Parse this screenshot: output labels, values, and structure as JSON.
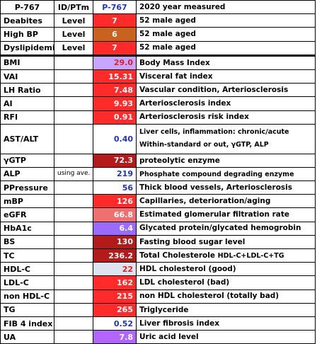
{
  "header": {
    "name": "P-767",
    "id": "ID/PTm",
    "value": "P-767",
    "desc": "2020 year measured"
  },
  "risk_rows": [
    {
      "name": "Deabites",
      "id": "Level",
      "value": "7",
      "desc": "52 male aged",
      "color": "#ff2b2b",
      "text_color": "#ffffff"
    },
    {
      "name": "High BP",
      "id": "Level",
      "value": "6",
      "desc": "52 male aged",
      "color": "#c8621e",
      "text_color": "#ffffff"
    },
    {
      "name": "Dyslipidemia",
      "id": "Level",
      "value": "7",
      "desc": "52 male aged",
      "color": "#ff2b2b",
      "text_color": "#ffffff"
    }
  ],
  "rows": [
    {
      "name": "BMI",
      "id": "",
      "value": "29.0",
      "desc": "Body Mass Index",
      "color": "#c8a6ff",
      "text_color": "#e02020",
      "sep": true
    },
    {
      "name": "VAI",
      "id": "",
      "value": "15.31",
      "desc": "Visceral fat index",
      "color": "#ff2b2b",
      "text_color": "#ffffff"
    },
    {
      "name": "LH Ratio",
      "id": "",
      "value": "7.48",
      "desc": "Vascular condition, Arteriosclerosis",
      "color": "#ff2b2b",
      "text_color": "#ffffff"
    },
    {
      "name": "AI",
      "id": "",
      "value": "9.93",
      "desc": "Arteriosclerosis index",
      "color": "#ff2b2b",
      "text_color": "#ffffff"
    },
    {
      "name": "RFI",
      "id": "",
      "value": "0.91",
      "desc": "Arteriosclerosis risk index",
      "color": "#ff2b2b",
      "text_color": "#ffffff"
    },
    {
      "name": "AST/ALT",
      "id": "",
      "value": "0.40",
      "desc": "Liver cells, inflammation: chronic/acute",
      "desc2": "Within-standard or out, γGTP, ALP",
      "color": "#ffffff",
      "text_color": "#1f2fd0",
      "tall": true
    },
    {
      "name": "γGTP",
      "id": "",
      "value": "72.3",
      "desc": "proteolytic enzyme",
      "color": "#b31b1b",
      "text_color": "#ffffff"
    },
    {
      "name": "ALP",
      "id": "using ave.",
      "value": "219",
      "desc": "Phosphate compound degrading enzyme",
      "color": "#ffffff",
      "text_color": "#1f2fd0",
      "small": true
    },
    {
      "name": "PPressure",
      "id": "",
      "value": "56",
      "desc": "Thick blood vessels, Arteriosclerosis",
      "color": "#ffffff",
      "text_color": "#1f2fd0"
    },
    {
      "name": "mBP",
      "id": "",
      "value": "126",
      "desc": "Capillaries, deterioration/aging",
      "color": "#ff2b2b",
      "text_color": "#ffffff"
    },
    {
      "name": "eGFR",
      "id": "",
      "value": "66.8",
      "desc": "Estimated glomerular filtration rate",
      "color": "#f07070",
      "text_color": "#ffffff"
    },
    {
      "name": "HbA1c",
      "id": "",
      "value": "6.4",
      "desc": "Glycated protein/glycated hemogrobin",
      "color": "#9a6bff",
      "text_color": "#ffffff"
    },
    {
      "name": "BS",
      "id": "",
      "value": "130",
      "desc": "Fasting blood sugar level",
      "color": "#b31b1b",
      "text_color": "#ffffff"
    },
    {
      "name": "TC",
      "id": "",
      "value": "236.2",
      "desc": "Total Cholesterole",
      "desc_suffix": "HDL-C+LDL-C+TG",
      "color": "#b31b1b",
      "text_color": "#ffffff"
    },
    {
      "name": "HDL-C",
      "id": "",
      "value": "22",
      "desc": "HDL cholesterol (good)",
      "color": "#dfe3f0",
      "text_color": "#e02020"
    },
    {
      "name": "LDL-C",
      "id": "",
      "value": "162",
      "desc": "LDL cholesterol (bad)",
      "color": "#ff2b2b",
      "text_color": "#ffffff"
    },
    {
      "name": "non HDL-C",
      "id": "",
      "value": "215",
      "desc": "non HDL cholesterol (totally bad)",
      "color": "#ff2b2b",
      "text_color": "#ffffff"
    },
    {
      "name": "TG",
      "id": "",
      "value": "265",
      "desc": "Triglyceride",
      "color": "#ff2b2b",
      "text_color": "#ffffff"
    },
    {
      "name": "FIB 4 index",
      "id": "",
      "value": "0.52",
      "desc": "Liver fibrosis index",
      "color": "#ffffff",
      "text_color": "#1f2fd0"
    },
    {
      "name": "UA",
      "id": "",
      "value": "7.8",
      "desc": "Uric acid level",
      "color": "#b266ff",
      "text_color": "#ffffff"
    }
  ]
}
